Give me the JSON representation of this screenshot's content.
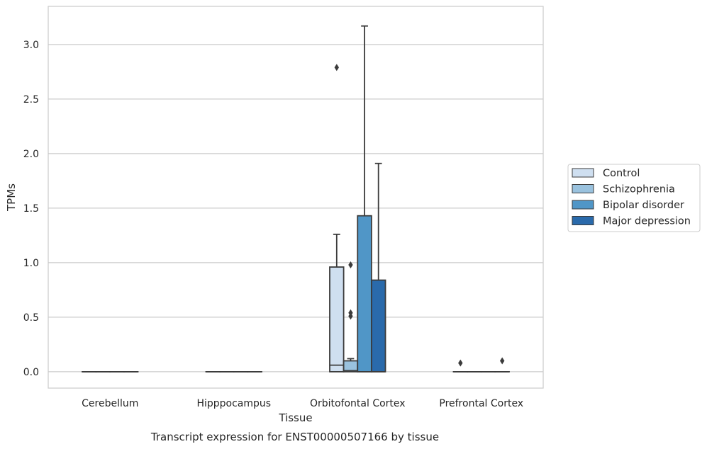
{
  "chart_data": {
    "type": "box",
    "title": "",
    "xlabel": "Tissue",
    "ylabel": "TPMs",
    "caption": "Transcript expression for ENST00000507166 by tissue",
    "categories": [
      "Cerebellum",
      "Hipppocampus",
      "Orbitofontal Cortex",
      "Prefrontal Cortex"
    ],
    "ylim": [
      -0.15,
      3.35
    ],
    "yticks": [
      0.0,
      0.5,
      1.0,
      1.5,
      2.0,
      2.5,
      3.0
    ],
    "ytick_labels": [
      "0.0",
      "0.5",
      "1.0",
      "1.5",
      "2.0",
      "2.5",
      "3.0"
    ],
    "grid": "horizontal",
    "legend_position": "right",
    "series": [
      {
        "name": "Control",
        "color": "#cfdff0",
        "boxes": [
          {
            "q1": 0,
            "median": 0,
            "q3": 0,
            "whisker_low": 0,
            "whisker_high": 0,
            "outliers": []
          },
          {
            "q1": 0,
            "median": 0,
            "q3": 0,
            "whisker_low": 0,
            "whisker_high": 0,
            "outliers": []
          },
          {
            "q1": 0,
            "median": 0.06,
            "q3": 0.96,
            "whisker_low": 0,
            "whisker_high": 1.26,
            "outliers": [
              2.79
            ]
          },
          {
            "q1": 0,
            "median": 0,
            "q3": 0,
            "whisker_low": 0,
            "whisker_high": 0,
            "outliers": [
              0.08
            ]
          }
        ]
      },
      {
        "name": "Schizophrenia",
        "color": "#9ac2de",
        "boxes": [
          {
            "q1": 0,
            "median": 0,
            "q3": 0,
            "whisker_low": 0,
            "whisker_high": 0,
            "outliers": []
          },
          {
            "q1": 0,
            "median": 0,
            "q3": 0,
            "whisker_low": 0,
            "whisker_high": 0,
            "outliers": []
          },
          {
            "q1": 0,
            "median": 0.01,
            "q3": 0.1,
            "whisker_low": 0,
            "whisker_high": 0.12,
            "outliers": [
              0.98,
              0.54,
              0.51
            ]
          },
          {
            "q1": 0,
            "median": 0,
            "q3": 0,
            "whisker_low": 0,
            "whisker_high": 0,
            "outliers": []
          }
        ]
      },
      {
        "name": "Bipolar disorder",
        "color": "#5096c7",
        "boxes": [
          {
            "q1": 0,
            "median": 0,
            "q3": 0,
            "whisker_low": 0,
            "whisker_high": 0,
            "outliers": []
          },
          {
            "q1": 0,
            "median": 0,
            "q3": 0,
            "whisker_low": 0,
            "whisker_high": 0,
            "outliers": []
          },
          {
            "q1": 0,
            "median": 0,
            "q3": 1.43,
            "whisker_low": 0,
            "whisker_high": 3.17,
            "outliers": []
          },
          {
            "q1": 0,
            "median": 0,
            "q3": 0,
            "whisker_low": 0,
            "whisker_high": 0,
            "outliers": []
          }
        ]
      },
      {
        "name": "Major depression",
        "color": "#2a6aab",
        "boxes": [
          {
            "q1": 0,
            "median": 0,
            "q3": 0,
            "whisker_low": 0,
            "whisker_high": 0,
            "outliers": []
          },
          {
            "q1": 0,
            "median": 0,
            "q3": 0,
            "whisker_low": 0,
            "whisker_high": 0,
            "outliers": []
          },
          {
            "q1": 0,
            "median": 0,
            "q3": 0.84,
            "whisker_low": 0,
            "whisker_high": 1.91,
            "outliers": []
          },
          {
            "q1": 0,
            "median": 0,
            "q3": 0,
            "whisker_low": 0,
            "whisker_high": 0,
            "outliers": [
              0.1
            ]
          }
        ]
      }
    ]
  }
}
